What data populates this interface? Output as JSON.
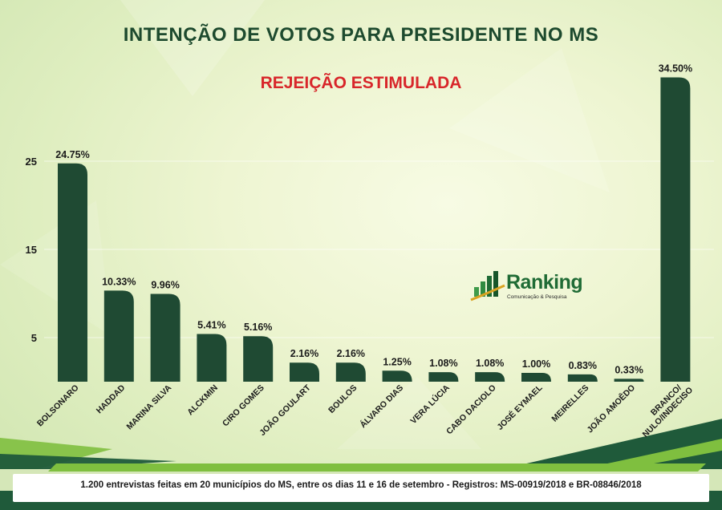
{
  "title": "INTENÇÃO DE VOTOS PARA PRESIDENTE NO MS",
  "subtitle": "REJEIÇÃO ESTIMULADA",
  "footer": "1.200 entrevistas feitas em 20 municípios do MS, entre os dias 11 e 16 de setembro - Registros:  MS-00919/2018 e BR-08846/2018",
  "logo": {
    "name": "Ranking",
    "tagline": "Comunicação & Pesquisa"
  },
  "colors": {
    "bar": "#1f4a33",
    "title": "#1d4a2e",
    "subtitle": "#d8262a",
    "footer_bar": "#1f5a3a",
    "accent_green": "#7fbf3f"
  },
  "chart_data": {
    "type": "bar",
    "title": "INTENÇÃO DE VOTOS PARA PRESIDENTE NO MS",
    "subtitle": "REJEIÇÃO ESTIMULADA",
    "categories": [
      "BOLSONARO",
      "HADDAD",
      "MARINA SILVA",
      "ALCKMIN",
      "CIRO GOMES",
      "JOÃO GOULART",
      "BOULOS",
      "ÁLVARO DIAS",
      "VERA LÚCIA",
      "CABO DACIOLO",
      "JOSÉ EYMAEL",
      "MEIRELLES",
      "JOÃO AMOÊDO",
      "BRANCO/ NULO/INDECISO"
    ],
    "values": [
      24.75,
      10.33,
      9.96,
      5.41,
      5.16,
      2.16,
      2.16,
      1.25,
      1.08,
      1.08,
      1.0,
      0.83,
      0.33,
      34.5
    ],
    "value_labels": [
      "24.75%",
      "10.33%",
      "9.96%",
      "5.41%",
      "5.16%",
      "2.16%",
      "2.16%",
      "1.25%",
      "1.08%",
      "1.08%",
      "1.00%",
      "0.83%",
      "0.33%",
      "34.50%"
    ],
    "yticks": [
      "25",
      "15",
      "5"
    ],
    "ytick_values": [
      25,
      15,
      5
    ],
    "ylim": [
      0,
      25
    ],
    "xlabel": "",
    "ylabel": "",
    "grid": true,
    "legend": "none"
  }
}
